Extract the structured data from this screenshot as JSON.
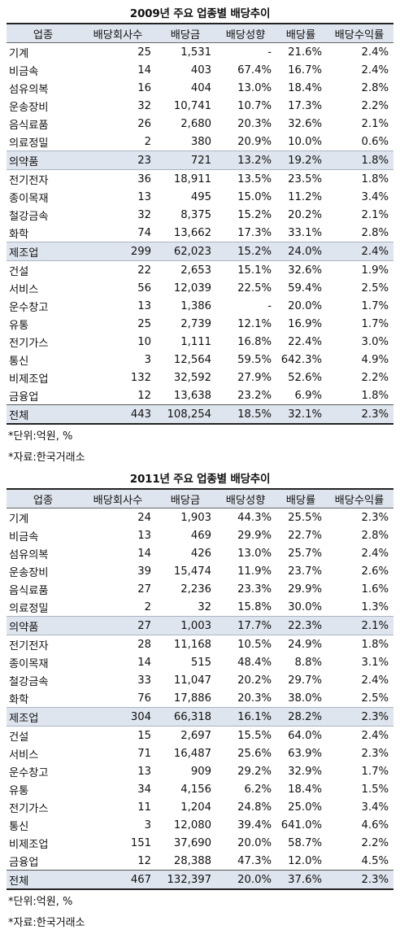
{
  "headers": [
    "업종",
    "배당회사수",
    "배당금",
    "배당성향",
    "배당률",
    "배당수익률"
  ],
  "sections": [
    {
      "title": "2009년 주요 업종별 배당추이",
      "rows": [
        {
          "cells": [
            "기계",
            "25",
            "1,531",
            "-",
            "21.6%",
            "2.4%"
          ]
        },
        {
          "cells": [
            "비금속",
            "14",
            "403",
            "67.4%",
            "16.7%",
            "2.4%"
          ]
        },
        {
          "cells": [
            "섬유의복",
            "16",
            "404",
            "13.0%",
            "18.4%",
            "2.8%"
          ]
        },
        {
          "cells": [
            "운송장비",
            "32",
            "10,741",
            "10.7%",
            "17.3%",
            "2.2%"
          ]
        },
        {
          "cells": [
            "음식료품",
            "26",
            "2,680",
            "20.3%",
            "32.6%",
            "2.1%"
          ]
        },
        {
          "cells": [
            "의료정밀",
            "2",
            "380",
            "20.9%",
            "10.0%",
            "0.6%"
          ]
        },
        {
          "cells": [
            "의약품",
            "23",
            "721",
            "13.2%",
            "19.2%",
            "1.8%"
          ],
          "highlight": true
        },
        {
          "cells": [
            "전기전자",
            "36",
            "18,911",
            "13.5%",
            "23.5%",
            "1.8%"
          ]
        },
        {
          "cells": [
            "종이목재",
            "13",
            "495",
            "15.0%",
            "11.2%",
            "3.4%"
          ]
        },
        {
          "cells": [
            "철강금속",
            "32",
            "8,375",
            "15.2%",
            "20.2%",
            "2.1%"
          ]
        },
        {
          "cells": [
            "화학",
            "74",
            "13,662",
            "17.3%",
            "33.1%",
            "2.8%"
          ]
        },
        {
          "cells": [
            "제조업",
            "299",
            "62,023",
            "15.2%",
            "24.0%",
            "2.4%"
          ],
          "highlight": true
        },
        {
          "cells": [
            "건설",
            "22",
            "2,653",
            "15.1%",
            "32.6%",
            "1.9%"
          ]
        },
        {
          "cells": [
            "서비스",
            "56",
            "12,039",
            "22.5%",
            "59.4%",
            "2.5%"
          ]
        },
        {
          "cells": [
            "운수창고",
            "13",
            "1,386",
            "-",
            "20.0%",
            "1.7%"
          ]
        },
        {
          "cells": [
            "유통",
            "25",
            "2,739",
            "12.1%",
            "16.9%",
            "1.7%"
          ]
        },
        {
          "cells": [
            "전기가스",
            "10",
            "1,111",
            "16.8%",
            "22.4%",
            "3.0%"
          ]
        },
        {
          "cells": [
            "통신",
            "3",
            "12,564",
            "59.5%",
            "642.3%",
            "4.9%"
          ]
        },
        {
          "cells": [
            "비제조업",
            "132",
            "32,592",
            "27.9%",
            "52.6%",
            "2.2%"
          ]
        },
        {
          "cells": [
            "금융업",
            "12",
            "13,638",
            "23.2%",
            "6.9%",
            "1.8%"
          ]
        },
        {
          "cells": [
            "전체",
            "443",
            "108,254",
            "18.5%",
            "32.1%",
            "2.3%"
          ],
          "total": true
        }
      ],
      "notes": [
        "*단위:억원, %",
        "*자료:한국거래소"
      ]
    },
    {
      "title": "2011년 주요 업종별 배당추이",
      "rows": [
        {
          "cells": [
            "기계",
            "24",
            "1,903",
            "44.3%",
            "25.5%",
            "2.3%"
          ]
        },
        {
          "cells": [
            "비금속",
            "13",
            "469",
            "29.9%",
            "22.7%",
            "2.8%"
          ]
        },
        {
          "cells": [
            "섬유의복",
            "14",
            "426",
            "13.0%",
            "25.7%",
            "2.4%"
          ]
        },
        {
          "cells": [
            "운송장비",
            "39",
            "15,474",
            "11.9%",
            "23.7%",
            "2.6%"
          ]
        },
        {
          "cells": [
            "음식료품",
            "27",
            "2,236",
            "23.3%",
            "29.9%",
            "1.6%"
          ]
        },
        {
          "cells": [
            "의료정밀",
            "2",
            "32",
            "15.8%",
            "30.0%",
            "1.3%"
          ]
        },
        {
          "cells": [
            "의약품",
            "27",
            "1,003",
            "17.7%",
            "22.3%",
            "2.1%"
          ],
          "highlight": true
        },
        {
          "cells": [
            "전기전자",
            "28",
            "11,168",
            "10.5%",
            "24.9%",
            "1.8%"
          ]
        },
        {
          "cells": [
            "종이목재",
            "14",
            "515",
            "48.4%",
            "8.8%",
            "3.1%"
          ]
        },
        {
          "cells": [
            "철강금속",
            "33",
            "11,047",
            "20.2%",
            "29.7%",
            "2.4%"
          ]
        },
        {
          "cells": [
            "화학",
            "76",
            "17,886",
            "20.3%",
            "38.0%",
            "2.5%"
          ]
        },
        {
          "cells": [
            "제조업",
            "304",
            "66,318",
            "16.1%",
            "28.2%",
            "2.3%"
          ],
          "highlight": true
        },
        {
          "cells": [
            "건설",
            "15",
            "2,697",
            "15.5%",
            "64.0%",
            "2.4%"
          ]
        },
        {
          "cells": [
            "서비스",
            "71",
            "16,487",
            "25.6%",
            "63.9%",
            "2.3%"
          ]
        },
        {
          "cells": [
            "운수창고",
            "13",
            "909",
            "29.2%",
            "32.9%",
            "1.7%"
          ]
        },
        {
          "cells": [
            "유통",
            "34",
            "4,156",
            "6.2%",
            "18.4%",
            "1.5%"
          ]
        },
        {
          "cells": [
            "전기가스",
            "11",
            "1,204",
            "24.8%",
            "25.0%",
            "3.4%"
          ]
        },
        {
          "cells": [
            "통신",
            "3",
            "12,080",
            "39.4%",
            "641.0%",
            "4.6%"
          ]
        },
        {
          "cells": [
            "비제조업",
            "151",
            "37,690",
            "20.0%",
            "58.7%",
            "2.2%"
          ]
        },
        {
          "cells": [
            "금융업",
            "12",
            "28,388",
            "47.3%",
            "12.0%",
            "4.5%"
          ]
        },
        {
          "cells": [
            "전체",
            "467",
            "132,397",
            "20.0%",
            "37.6%",
            "2.3%"
          ],
          "total": true
        }
      ],
      "notes": [
        "*단위:억원, %",
        "*자료:한국거래소"
      ]
    }
  ]
}
